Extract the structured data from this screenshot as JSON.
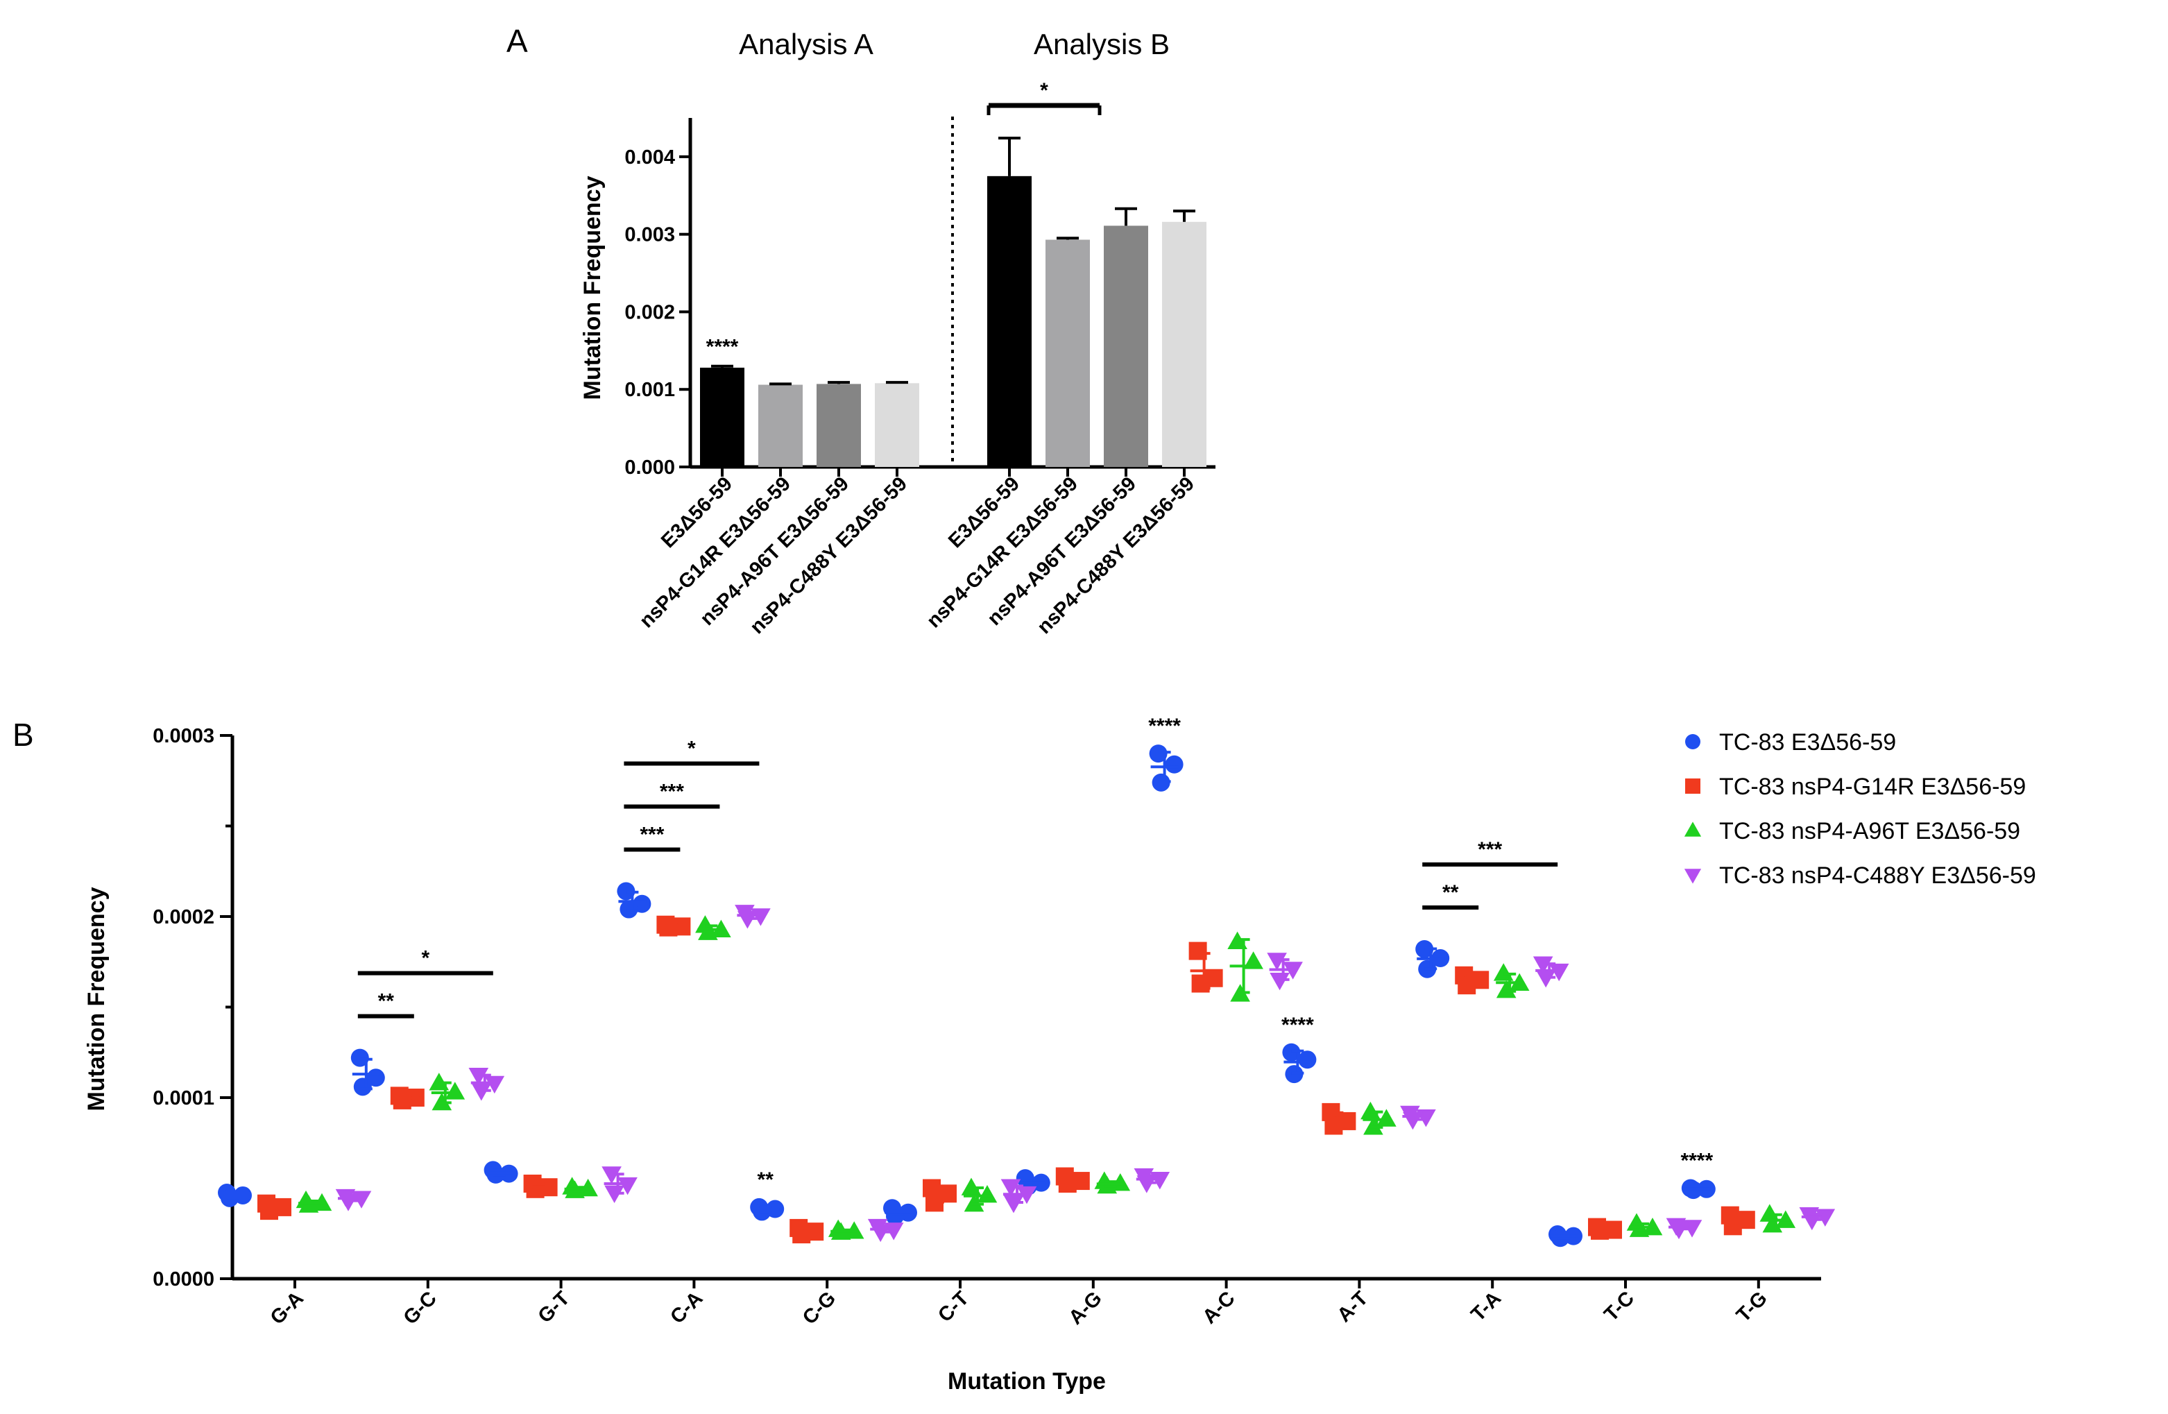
{
  "figure": {
    "panel_a_letter": "A",
    "panel_b_letter": "B"
  },
  "chart_data": [
    {
      "id": "panel-a",
      "type": "bar",
      "section_titles": [
        "Analysis A",
        "Analysis B"
      ],
      "title": "",
      "xlabel": "",
      "ylabel": "Mutation Frequency",
      "ylim": [
        0,
        0.0045
      ],
      "yticks": [
        "0.000",
        "0.001",
        "0.002",
        "0.003",
        "0.004"
      ],
      "ytick_values": [
        0,
        0.001,
        0.002,
        0.003,
        0.004
      ],
      "categories": [
        "E3Δ56-59",
        "nsP4-G14R E3Δ56-59",
        "nsP4-A96T E3Δ56-59",
        "nsP4-C488Y E3Δ56-59"
      ],
      "bar_colors": [
        "#000000",
        "#a6a6a8",
        "#858585",
        "#dcdcdc"
      ],
      "series": [
        {
          "name": "Analysis A",
          "values": [
            0.00128,
            0.00106,
            0.00107,
            0.00108
          ],
          "errors": [
            2e-05,
            1e-05,
            2e-05,
            1e-05
          ]
        },
        {
          "name": "Analysis B",
          "values": [
            0.00375,
            0.00293,
            0.00311,
            0.00316
          ],
          "errors": [
            0.00049,
            2e-05,
            0.00022,
            0.00014
          ]
        }
      ],
      "annotations": [
        {
          "series": 0,
          "category": 0,
          "text": "****"
        },
        {
          "series": 1,
          "from": 0,
          "to": 1,
          "text": "*"
        }
      ]
    },
    {
      "id": "panel-b",
      "type": "scatter",
      "title": "",
      "xlabel": "Mutation Type",
      "ylabel": "Mutation Frequency",
      "ylim": [
        0,
        0.0003
      ],
      "yticks": [
        "0.0000",
        "0.0001",
        "0.0002",
        "0.0003"
      ],
      "ytick_values": [
        0,
        0.0001,
        0.0002,
        0.0003
      ],
      "categories": [
        "G-A",
        "G-C",
        "G-T",
        "C-A",
        "C-G",
        "C-T",
        "A-G",
        "A-C",
        "A-T",
        "T-A",
        "T-C",
        "T-G"
      ],
      "series": [
        {
          "name": "TC-83 E3Δ56-59",
          "color": "#1f4ff0",
          "marker": "circle",
          "points": [
            [
              4.75e-05,
              4.6e-05,
              4.45e-05
            ],
            [
              0.000122,
              0.000111,
              0.000106
            ],
            [
              6e-05,
              5.8e-05,
              5.75e-05
            ],
            [
              0.000214,
              0.000207,
              0.000204
            ],
            [
              3.95e-05,
              3.85e-05,
              3.7e-05
            ],
            [
              3.9e-05,
              3.65e-05,
              3.45e-05
            ],
            [
              5.55e-05,
              5.3e-05,
              5.1e-05
            ],
            [
              0.00029,
              0.000284,
              0.000274
            ],
            [
              0.000125,
              0.000121,
              0.000113
            ],
            [
              0.000182,
              0.000177,
              0.000171
            ],
            [
              2.45e-05,
              2.35e-05,
              2.25e-05
            ],
            [
              5e-05,
              4.95e-05,
              4.9e-05
            ]
          ]
        },
        {
          "name": "TC-83 nsP4-G14R E3Δ56-59",
          "color": "#f03a1e",
          "marker": "square",
          "points": [
            [
              4.15e-05,
              3.95e-05,
              3.75e-05
            ],
            [
              0.000101,
              0.0001,
              9.85e-05
            ],
            [
              5.25e-05,
              5.05e-05,
              4.95e-05
            ],
            [
              0.0001955,
              0.0001945,
              0.000194
            ],
            [
              2.8e-05,
              2.6e-05,
              2.45e-05
            ],
            [
              5e-05,
              4.7e-05,
              4.2e-05
            ],
            [
              5.65e-05,
              5.4e-05,
              5.25e-05
            ],
            [
              0.000181,
              0.000166,
              0.000163
            ],
            [
              9.2e-05,
              8.7e-05,
              8.45e-05
            ],
            [
              0.0001675,
              0.000165,
              0.000162
            ],
            [
              2.85e-05,
              2.7e-05,
              2.65e-05
            ],
            [
              3.5e-05,
              3.25e-05,
              2.9e-05
            ]
          ]
        },
        {
          "name": "TC-83 nsP4-A96T E3Δ56-59",
          "color": "#1fd01f",
          "marker": "triangle-up",
          "points": [
            [
              4.3e-05,
              4.15e-05,
              4.05e-05
            ],
            [
              0.000108,
              0.000103,
              9.7e-05
            ],
            [
              5.05e-05,
              4.95e-05,
              4.85e-05
            ],
            [
              0.000195,
              0.0001925,
              0.000191
            ],
            [
              2.7e-05,
              2.6e-05,
              2.55e-05
            ],
            [
              5e-05,
              4.6e-05,
              4.1e-05
            ],
            [
              5.35e-05,
              5.25e-05,
              5.1e-05
            ],
            [
              0.000186,
              0.000175,
              0.000157
            ],
            [
              9.2e-05,
              8.8e-05,
              8.35e-05
            ],
            [
              0.0001685,
              0.000163,
              0.000159
            ],
            [
              3.05e-05,
              2.8e-05,
              2.7e-05
            ],
            [
              3.55e-05,
              3.2e-05,
              2.95e-05
            ]
          ]
        },
        {
          "name": "TC-83 nsP4-C488Y E3Δ56-59",
          "color": "#b44ef0",
          "marker": "triangle-down",
          "points": [
            [
              4.55e-05,
              4.45e-05,
              4.3e-05
            ],
            [
              0.0001125,
              0.000108,
              0.000104
            ],
            [
              5.8e-05,
              5.2e-05,
              4.75e-05
            ],
            [
              0.0002025,
              0.0002005,
              0.000199
            ],
            [
              2.9e-05,
              2.7e-05,
              2.6e-05
            ],
            [
              5.1e-05,
              4.7e-05,
              4.2e-05
            ],
            [
              5.7e-05,
              5.5e-05,
              5.3e-05
            ],
            [
              0.000176,
              0.000171,
              0.000165
            ],
            [
              9.15e-05,
              8.95e-05,
              8.8e-05
            ],
            [
              0.000174,
              0.00017,
              0.0001665
            ],
            [
              2.95e-05,
              2.85e-05,
              2.75e-05
            ],
            [
              3.55e-05,
              3.45e-05,
              3.25e-05
            ]
          ]
        }
      ],
      "annotations": [
        {
          "category": 1,
          "from": 0,
          "to": 1,
          "level": 0,
          "text": "**"
        },
        {
          "category": 1,
          "from": 0,
          "to": 3,
          "level": 1,
          "text": "*"
        },
        {
          "category": 3,
          "from": 0,
          "to": 1,
          "level": 0,
          "text": "***"
        },
        {
          "category": 3,
          "from": 0,
          "to": 2,
          "level": 1,
          "text": "***"
        },
        {
          "category": 3,
          "from": 0,
          "to": 3,
          "level": 2,
          "text": "*"
        },
        {
          "category": 4,
          "series": 0,
          "text": "**"
        },
        {
          "category": 7,
          "series": 0,
          "text": "****"
        },
        {
          "category": 8,
          "series": 0,
          "text": "****"
        },
        {
          "category": 9,
          "from": 0,
          "to": 1,
          "level": 0,
          "text": "**"
        },
        {
          "category": 9,
          "from": 0,
          "to": 3,
          "level": 1,
          "text": "***"
        },
        {
          "category": 11,
          "series": 0,
          "text": "****"
        }
      ],
      "legend_position": "top-right"
    }
  ]
}
